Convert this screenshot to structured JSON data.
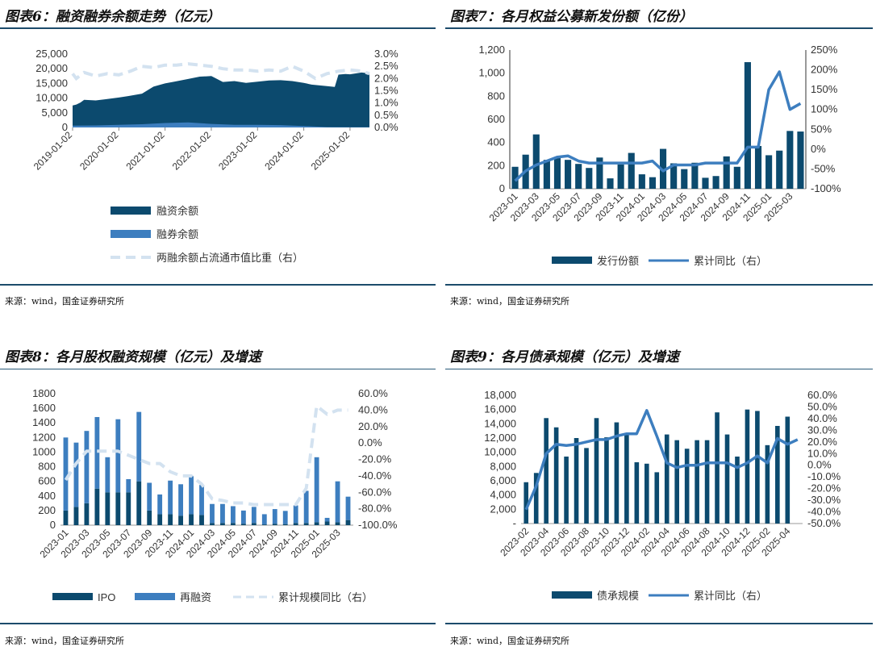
{
  "colors": {
    "dark": "#0c4a6e",
    "mid": "#3d7ebf",
    "light": "#d3e2f0",
    "rule": "#1c4b6b"
  },
  "source_text": "来源：wind，国金证券研究所",
  "charts": [
    {
      "id": "c6",
      "title": "图表6：融资融券余额走势（亿元）",
      "chart_data": {
        "type": "area",
        "title": "融资融券余额走势（亿元）",
        "x_ticks": [
          "2019-01-02",
          "2020-01-02",
          "2021-01-02",
          "2022-01-02",
          "2023-01-02",
          "2024-01-02",
          "2025-01-02"
        ],
        "y_left_ticks": [
          "25,000",
          "20,000",
          "15,000",
          "10,000",
          "5,000",
          "0"
        ],
        "y_left_range": [
          0,
          25000
        ],
        "y_right_ticks": [
          "3.0%",
          "2.5%",
          "2.0%",
          "1.5%",
          "1.0%",
          "0.5%",
          "0.0%"
        ],
        "y_right_range": [
          0,
          3.0
        ],
        "x_range": [
          2019.0,
          2025.42
        ],
        "series": [
          {
            "name": "融资余额",
            "kind": "area",
            "axis": "left",
            "points": [
              [
                2019.0,
                7500
              ],
              [
                2019.08,
                7800
              ],
              [
                2019.17,
                8500
              ],
              [
                2019.25,
                9400
              ],
              [
                2019.5,
                9200
              ],
              [
                2019.75,
                9700
              ],
              [
                2020.0,
                10200
              ],
              [
                2020.2,
                10700
              ],
              [
                2020.5,
                11500
              ],
              [
                2020.75,
                13900
              ],
              [
                2021.0,
                15000
              ],
              [
                2021.2,
                15600
              ],
              [
                2021.5,
                16500
              ],
              [
                2021.75,
                17300
              ],
              [
                2022.0,
                17500
              ],
              [
                2022.25,
                15500
              ],
              [
                2022.5,
                15800
              ],
              [
                2022.75,
                15200
              ],
              [
                2023.0,
                15600
              ],
              [
                2023.25,
                16000
              ],
              [
                2023.5,
                16100
              ],
              [
                2023.75,
                15800
              ],
              [
                2024.0,
                15200
              ],
              [
                2024.17,
                14600
              ],
              [
                2024.5,
                14100
              ],
              [
                2024.67,
                13800
              ],
              [
                2024.75,
                18000
              ],
              [
                2024.9,
                18200
              ],
              [
                2025.0,
                18100
              ],
              [
                2025.25,
                18700
              ],
              [
                2025.42,
                18400
              ]
            ]
          },
          {
            "name": "融券余额",
            "kind": "area",
            "axis": "left",
            "points": [
              [
                2019.0,
                600
              ],
              [
                2019.5,
                700
              ],
              [
                2020.0,
                900
              ],
              [
                2020.5,
                1100
              ],
              [
                2021.0,
                1500
              ],
              [
                2021.5,
                1700
              ],
              [
                2022.0,
                1200
              ],
              [
                2022.5,
                900
              ],
              [
                2023.0,
                900
              ],
              [
                2023.5,
                800
              ],
              [
                2024.0,
                500
              ],
              [
                2024.5,
                150
              ],
              [
                2025.0,
                100
              ],
              [
                2025.42,
                100
              ]
            ]
          },
          {
            "name": "两融余额占流通市值比重（右）",
            "kind": "dashed-line",
            "axis": "right",
            "points": [
              [
                2019.0,
                2.2
              ],
              [
                2019.08,
                2.0
              ],
              [
                2019.25,
                2.25
              ],
              [
                2019.5,
                2.1
              ],
              [
                2019.75,
                2.2
              ],
              [
                2020.0,
                2.15
              ],
              [
                2020.25,
                2.3
              ],
              [
                2020.5,
                2.5
              ],
              [
                2020.75,
                2.45
              ],
              [
                2021.0,
                2.55
              ],
              [
                2021.25,
                2.55
              ],
              [
                2021.5,
                2.6
              ],
              [
                2021.75,
                2.55
              ],
              [
                2022.0,
                2.5
              ],
              [
                2022.25,
                2.4
              ],
              [
                2022.5,
                2.35
              ],
              [
                2022.75,
                2.35
              ],
              [
                2023.0,
                2.3
              ],
              [
                2023.25,
                2.35
              ],
              [
                2023.5,
                2.3
              ],
              [
                2023.75,
                2.5
              ],
              [
                2024.0,
                2.3
              ],
              [
                2024.25,
                2.0
              ],
              [
                2024.5,
                2.2
              ],
              [
                2024.75,
                2.3
              ],
              [
                2025.0,
                2.35
              ],
              [
                2025.25,
                2.3
              ],
              [
                2025.42,
                2.2
              ]
            ]
          }
        ],
        "legend": [
          "融资余额",
          "融券余额",
          "两融余额占流通市值比重（右）"
        ]
      }
    },
    {
      "id": "c7",
      "title": "图表7：各月权益公募新发份额（亿份）",
      "chart_data": {
        "type": "bar",
        "title": "各月权益公募新发份额（亿份）",
        "categories": [
          "2023-01",
          "2023-02",
          "2023-03",
          "2023-04",
          "2023-05",
          "2023-06",
          "2023-07",
          "2023-08",
          "2023-09",
          "2023-10",
          "2023-11",
          "2023-12",
          "2024-01",
          "2024-02",
          "2024-03",
          "2024-04",
          "2024-05",
          "2024-06",
          "2024-07",
          "2024-08",
          "2024-09",
          "2024-10",
          "2024-11",
          "2024-12",
          "2025-01",
          "2025-02",
          "2025-03",
          "2025-04"
        ],
        "x_tick_labels": [
          "2023-01",
          "2023-03",
          "2023-05",
          "2023-07",
          "2023-09",
          "2023-11",
          "2024-01",
          "2024-03",
          "2024-05",
          "2024-07",
          "2024-09",
          "2024-11",
          "2025-01",
          "2025-03"
        ],
        "y_left_ticks": [
          "1,200",
          "1,000",
          "800",
          "600",
          "400",
          "200",
          "0"
        ],
        "y_left_range": [
          0,
          1200
        ],
        "y_right_ticks": [
          "250%",
          "200%",
          "150%",
          "100%",
          "50%",
          "0%",
          "-50%",
          "-100%"
        ],
        "y_right_range": [
          -100,
          250
        ],
        "series": [
          {
            "name": "发行份额",
            "kind": "bar",
            "axis": "left",
            "values": [
              190,
              295,
              470,
              250,
              270,
              250,
              215,
              180,
              270,
              90,
              210,
              310,
              125,
              100,
              345,
              220,
              170,
              225,
              95,
              110,
              280,
              190,
              1095,
              370,
              290,
              330,
              500,
              495
            ]
          },
          {
            "name": "累计同比（右）",
            "kind": "line",
            "axis": "right",
            "values": [
              -80,
              -55,
              -40,
              -30,
              -20,
              -17,
              -30,
              -35,
              -35,
              -35,
              -35,
              -35,
              -35,
              -30,
              -55,
              -40,
              -40,
              -40,
              -35,
              -35,
              -35,
              -35,
              5,
              5,
              150,
              195,
              100,
              115
            ]
          }
        ],
        "legend": [
          "发行份额",
          "累计同比（右）"
        ]
      }
    },
    {
      "id": "c8",
      "title": "图表8：各月股权融资规模（亿元）及增速",
      "chart_data": {
        "type": "bar",
        "title": "各月股权融资规模（亿元）及增速",
        "categories": [
          "2023-01",
          "2023-02",
          "2023-03",
          "2023-04",
          "2023-05",
          "2023-06",
          "2023-07",
          "2023-08",
          "2023-09",
          "2023-10",
          "2023-11",
          "2023-12",
          "2024-01",
          "2024-02",
          "2024-03",
          "2024-04",
          "2024-05",
          "2024-06",
          "2024-07",
          "2024-08",
          "2024-09",
          "2024-10",
          "2024-11",
          "2024-12",
          "2025-01",
          "2025-02",
          "2025-03",
          "2025-04"
        ],
        "x_tick_labels": [
          "2023-01",
          "2023-03",
          "2023-05",
          "2023-07",
          "2023-09",
          "2023-11",
          "2024-01",
          "2024-03",
          "2024-05",
          "2024-07",
          "2024-09",
          "2024-11",
          "2025-01",
          "2025-03"
        ],
        "y_left_ticks": [
          "1800",
          "1600",
          "1400",
          "1200",
          "1000",
          "800",
          "600",
          "400",
          "200",
          "0"
        ],
        "y_left_range": [
          0,
          1800
        ],
        "y_right_ticks": [
          "60.0%",
          "40.0%",
          "20.0%",
          "0.0%",
          "-20.0%",
          "-40.0%",
          "-60.0%",
          "-80.0%",
          "-100.0%"
        ],
        "y_right_range": [
          -100,
          60
        ],
        "stacked": true,
        "series": [
          {
            "name": "IPO",
            "kind": "bar",
            "axis": "left",
            "values": [
              200,
              250,
              300,
              500,
              450,
              450,
              450,
              600,
              200,
              150,
              150,
              130,
              150,
              140,
              30,
              30,
              30,
              20,
              30,
              10,
              20,
              15,
              30,
              30,
              40,
              50,
              40,
              70
            ]
          },
          {
            "name": "再融资",
            "kind": "bar",
            "axis": "left",
            "values": [
              1000,
              880,
              990,
              980,
              480,
              1000,
              180,
              950,
              380,
              270,
              460,
              430,
              520,
              410,
              260,
              260,
              230,
              180,
              220,
              140,
              200,
              180,
              240,
              440,
              890,
              50,
              560,
              320
            ]
          },
          {
            "name": "累计规模同比（右）",
            "kind": "dashed-line",
            "axis": "right",
            "values": [
              -45,
              -25,
              -10,
              -10,
              -10,
              -10,
              -15,
              -20,
              -25,
              -25,
              -35,
              -40,
              -40,
              -50,
              -68,
              -70,
              -73,
              -73,
              -75,
              -75,
              -75,
              -75,
              -75,
              -55,
              45,
              35,
              40,
              40
            ]
          }
        ],
        "legend": [
          "IPO",
          "再融资",
          "累计规模同比（右）"
        ]
      }
    },
    {
      "id": "c9",
      "title": "图表9：各月债承规模（亿元）及增速",
      "chart_data": {
        "type": "bar",
        "title": "各月债承规模（亿元）及增速",
        "categories": [
          "2023-02",
          "2023-03",
          "2023-04",
          "2023-05",
          "2023-06",
          "2023-07",
          "2023-08",
          "2023-09",
          "2023-10",
          "2023-11",
          "2023-12",
          "2024-01",
          "2024-02",
          "2024-03",
          "2024-04",
          "2024-05",
          "2024-06",
          "2024-07",
          "2024-08",
          "2024-09",
          "2024-10",
          "2024-11",
          "2024-12",
          "2025-01",
          "2025-02",
          "2025-03",
          "2025-04",
          "2025-05"
        ],
        "x_tick_labels": [
          "2023-02",
          "2023-04",
          "2023-06",
          "2023-08",
          "2023-10",
          "2023-12",
          "2024-02",
          "2024-04",
          "2024-06",
          "2024-08",
          "2024-10",
          "2024-12",
          "2025-02",
          "2025-04"
        ],
        "y_left_ticks": [
          "18,000",
          "16,000",
          "14,000",
          "12,000",
          "10,000",
          "8,000",
          "6,000",
          "4,000",
          "2,000",
          "-"
        ],
        "y_left_range": [
          0,
          18000
        ],
        "y_right_ticks": [
          "60.0%",
          "50.0%",
          "40.0%",
          "30.0%",
          "20.0%",
          "10.0%",
          "0.0%",
          "-10.0%",
          "-20.0%",
          "-30.0%",
          "-40.0%",
          "-50.0%"
        ],
        "y_right_range": [
          -50,
          60
        ],
        "series": [
          {
            "name": "债承规模",
            "kind": "bar",
            "axis": "left",
            "values": [
              5800,
              7100,
              14800,
              13500,
              9400,
              12000,
              10600,
              14800,
              12100,
              14200,
              12500,
              8600,
              8400,
              7200,
              12500,
              11700,
              10500,
              11700,
              11700,
              15600,
              12500,
              9400,
              16000,
              15800,
              11000,
              13700,
              15000,
              null
            ]
          },
          {
            "name": "累计同比（右）",
            "kind": "line",
            "axis": "right",
            "values": [
              -38,
              -18,
              10,
              18,
              17,
              18,
              20,
              22,
              22,
              25,
              27,
              27,
              47,
              25,
              2,
              -2,
              0,
              0,
              2,
              2,
              2,
              -2,
              2,
              8,
              2,
              23,
              18,
              22
            ]
          }
        ],
        "legend": [
          "债承规模",
          "累计同比（右）"
        ]
      }
    }
  ]
}
